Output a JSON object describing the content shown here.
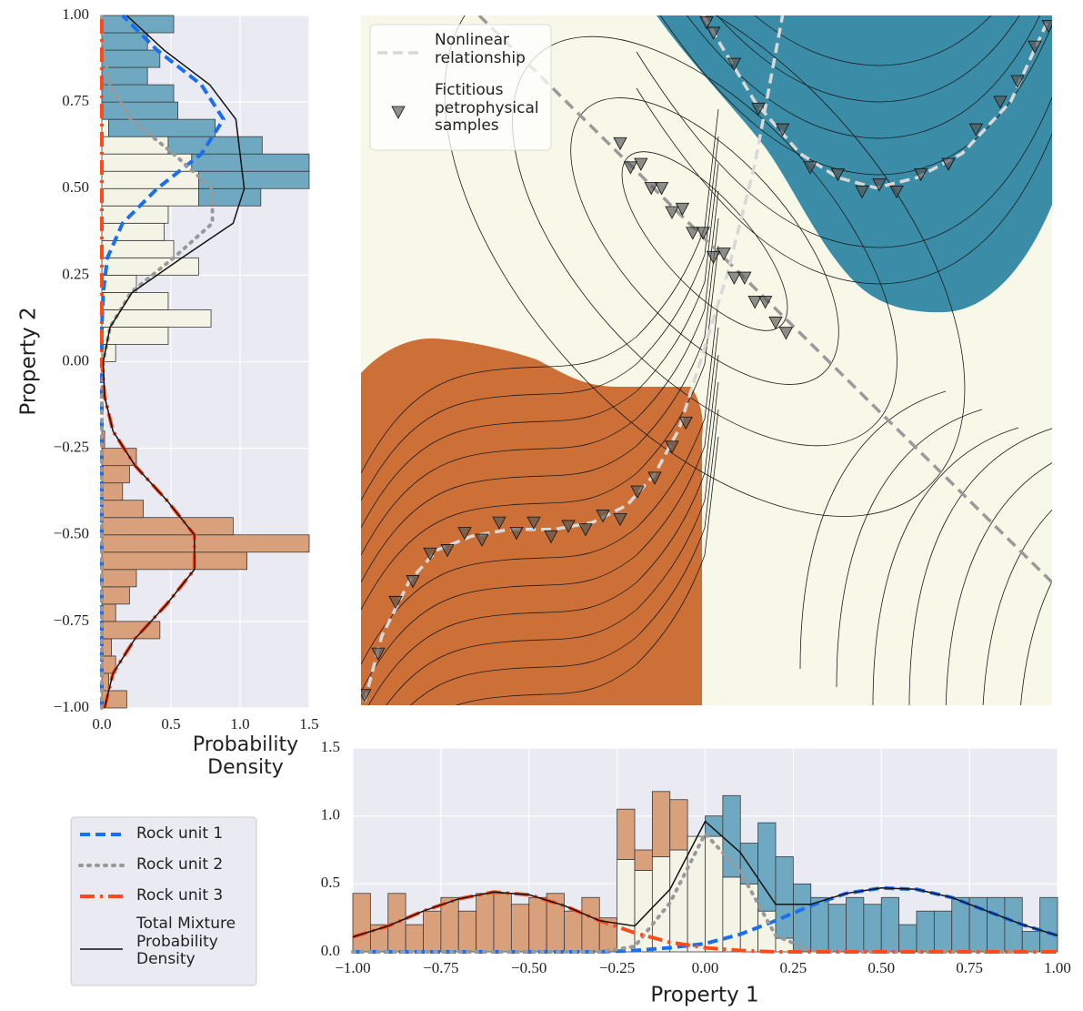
{
  "chart_data": [
    {
      "type": "histogram",
      "orientation": "horizontal",
      "ylabel": "Property 2",
      "xlabel": "Probability Density",
      "xlim": [
        0,
        1.5
      ],
      "xticks": [
        {
          "value": 0,
          "label": "0.0"
        },
        0.5,
        {
          "value": 1,
          "label": "1.0"
        },
        1.5
      ],
      "ylim": [
        -1,
        1
      ],
      "yticks": [
        {
          "value": -1,
          "label": "−1.00"
        },
        {
          "value": -0.75,
          "label": "−0.75"
        },
        {
          "value": -0.5,
          "label": "−0.50"
        },
        {
          "value": -0.25,
          "label": "−0.25"
        },
        {
          "value": 0,
          "label": "0.00"
        },
        0.25,
        {
          "value": 0.5,
          "label": "0.50"
        },
        0.75,
        {
          "value": 1,
          "label": "1.00"
        }
      ],
      "grid": true,
      "bins": [
        -1,
        -0.95,
        -0.9,
        -0.85,
        -0.8,
        -0.75,
        -0.7,
        -0.65,
        -0.6,
        -0.55,
        -0.5,
        -0.45,
        -0.4,
        -0.35,
        -0.3,
        -0.25,
        -0.2,
        -0.15,
        -0.1,
        -0.05,
        0,
        0.05,
        0.1,
        0.15,
        0.2,
        0.25,
        0.3,
        0.35,
        0.4,
        0.45,
        0.5,
        0.55,
        0.6,
        0.65,
        0.7,
        0.75,
        0.8,
        0.85,
        0.9,
        0.95,
        1
      ],
      "series": [
        {
          "color": "#d9a07c",
          "values": [
            0.18,
            0.05,
            0.1,
            0.07,
            0.42,
            0.1,
            0.2,
            0.25,
            1.05,
            1.5,
            0.95,
            0.3,
            0.15,
            0.2,
            0.25,
            0.02,
            0,
            0,
            0,
            0,
            0,
            0,
            0,
            0,
            0,
            0,
            0,
            0,
            0,
            0,
            0,
            0,
            0,
            0,
            0,
            0,
            0,
            0,
            0,
            0
          ]
        },
        {
          "color": "#f4f4e6",
          "values": [
            0,
            0,
            0,
            0,
            0,
            0,
            0,
            0,
            0,
            0,
            0,
            0,
            0,
            0,
            0,
            0,
            0,
            0,
            0,
            0,
            0.1,
            0.48,
            0.79,
            0.48,
            0.25,
            0.7,
            0.52,
            0.45,
            0.48,
            0.7,
            0.7,
            0.65,
            0.48,
            0.05,
            0,
            0,
            0,
            0,
            0,
            0
          ]
        },
        {
          "color": "#6fa9c1",
          "values": [
            0,
            0,
            0,
            0,
            0,
            0,
            0,
            0,
            0,
            0,
            0,
            0,
            0,
            0,
            0,
            0,
            0,
            0,
            0,
            0,
            0,
            0,
            0,
            0,
            0,
            0,
            0,
            0,
            0,
            0.45,
            0.8,
            0.85,
            0.68,
            0.77,
            0.55,
            0.52,
            0.33,
            0.42,
            0.33,
            0.52
          ]
        }
      ],
      "curve_positions": [
        -1,
        -0.9,
        -0.8,
        -0.7,
        -0.6,
        -0.5,
        -0.4,
        -0.3,
        -0.2,
        -0.1,
        0,
        0.1,
        0.2,
        0.3,
        0.4,
        0.5,
        0.6,
        0.7,
        0.8,
        0.9,
        1
      ],
      "lines": [
        {
          "color": "#1a6ff0",
          "style": "dashed",
          "values": [
            0,
            0,
            0,
            0,
            0,
            0,
            0,
            0,
            0,
            0,
            0,
            0,
            0.01,
            0.04,
            0.15,
            0.4,
            0.72,
            0.88,
            0.72,
            0.4,
            0.15
          ]
        },
        {
          "color": "#999999",
          "style": "dotted",
          "values": [
            0,
            0,
            0,
            0,
            0,
            0,
            0,
            0,
            0,
            0,
            0.01,
            0.06,
            0.21,
            0.52,
            0.8,
            0.8,
            0.52,
            0.21,
            0.06,
            0.01,
            0
          ]
        },
        {
          "color": "#ff4a1a",
          "style": "dashdot",
          "values": [
            0.02,
            0.08,
            0.24,
            0.47,
            0.67,
            0.67,
            0.47,
            0.24,
            0.08,
            0.02,
            0,
            0,
            0,
            0,
            0,
            0,
            0,
            0,
            0,
            0,
            0
          ]
        },
        {
          "color": "#111111",
          "style": "solid",
          "values": [
            0.02,
            0.08,
            0.24,
            0.47,
            0.67,
            0.67,
            0.47,
            0.24,
            0.08,
            0.02,
            0.01,
            0.06,
            0.22,
            0.58,
            0.95,
            1.03,
            1.0,
            0.97,
            0.78,
            0.45,
            0.18
          ]
        }
      ]
    },
    {
      "type": "scatter",
      "xlim": [
        -1,
        1
      ],
      "ylim": [
        -1,
        1
      ],
      "legend": "upper left",
      "series": [
        {
          "name": "Nonlinear relationship",
          "color": "#d8d8d8",
          "style": "dashed",
          "x": [
            -0.99,
            -0.94,
            -0.86,
            -0.78,
            -0.68,
            -0.57,
            -0.44,
            -0.33,
            -0.23,
            -0.15,
            -0.08,
            -0.02,
            0.06,
            0.14,
            0.22,
            null,
            -0.01,
            0.14,
            0.27,
            0.38,
            0.49,
            0.61,
            0.74,
            0.88,
            0.99
          ],
          "y": [
            -0.99,
            -0.8,
            -0.64,
            -0.55,
            -0.51,
            -0.49,
            -0.49,
            -0.47,
            -0.42,
            -0.33,
            -0.2,
            -0.01,
            0.25,
            0.57,
            1.0,
            null,
            1.0,
            0.75,
            0.6,
            0.53,
            0.5,
            0.53,
            0.6,
            0.75,
            0.99
          ]
        },
        {
          "name": "Fictitious petrophysical samples",
          "color": "#555555",
          "marker": "v",
          "x": [
            -0.25,
            -0.22,
            -0.19,
            -0.16,
            -0.13,
            -0.1,
            -0.07,
            -0.04,
            -0.01,
            0.02,
            0.05,
            0.08,
            0.11,
            0.14,
            0.17,
            0.2,
            0.23,
            0,
            0.02,
            0.08,
            0.15,
            0.22,
            0.3,
            0.38,
            0.45,
            0.5,
            0.55,
            0.62,
            0.7,
            0.78,
            0.85,
            0.9,
            0.95,
            0.99,
            -0.99,
            -0.95,
            -0.9,
            -0.85,
            -0.8,
            -0.75,
            -0.7,
            -0.65,
            -0.6,
            -0.55,
            -0.5,
            -0.45,
            -0.4,
            -0.35,
            -0.3,
            -0.25,
            -0.2,
            -0.15,
            -0.1,
            -0.06
          ],
          "y": [
            0.63,
            0.56,
            0.57,
            0.5,
            0.5,
            0.43,
            0.44,
            0.37,
            0.37,
            0.3,
            0.31,
            0.24,
            0.24,
            0.17,
            0.17,
            0.11,
            0.08,
            0.98,
            0.95,
            0.86,
            0.73,
            0.67,
            0.56,
            0.54,
            0.49,
            0.51,
            0.49,
            0.54,
            0.57,
            0.67,
            0.75,
            0.81,
            0.91,
            0.97,
            -0.97,
            -0.85,
            -0.7,
            -0.64,
            -0.56,
            -0.55,
            -0.5,
            -0.52,
            -0.47,
            -0.5,
            -0.47,
            -0.51,
            -0.48,
            -0.49,
            -0.45,
            -0.46,
            -0.38,
            -0.34,
            -0.25,
            -0.18
          ]
        }
      ]
    },
    {
      "type": "histogram",
      "orientation": "vertical",
      "xlabel": "Property 1",
      "xlim": [
        -1,
        1
      ],
      "xticks": [
        {
          "value": -1,
          "label": "−1.00"
        },
        {
          "value": -0.75,
          "label": "−0.75"
        },
        {
          "value": -0.5,
          "label": "−0.50"
        },
        {
          "value": -0.25,
          "label": "−0.25"
        },
        {
          "value": 0,
          "label": "0.00"
        },
        0.25,
        {
          "value": 0.5,
          "label": "0.50"
        },
        0.75,
        {
          "value": 1,
          "label": "1.00"
        }
      ],
      "ylim": [
        0,
        1.5
      ],
      "yticks": [
        {
          "value": 0,
          "label": "0.0"
        },
        0.5,
        {
          "value": 1,
          "label": "1.0"
        },
        1.5
      ],
      "grid": true,
      "bins": [
        -1,
        -0.95,
        -0.9,
        -0.85,
        -0.8,
        -0.75,
        -0.7,
        -0.65,
        -0.6,
        -0.55,
        -0.5,
        -0.45,
        -0.4,
        -0.35,
        -0.3,
        -0.25,
        -0.2,
        -0.15,
        -0.1,
        -0.05,
        0,
        0.05,
        0.1,
        0.15,
        0.2,
        0.25,
        0.3,
        0.35,
        0.4,
        0.45,
        0.5,
        0.55,
        0.6,
        0.65,
        0.7,
        0.75,
        0.8,
        0.85,
        0.9,
        0.95,
        1
      ],
      "series": [
        {
          "color": "#f4f4e6",
          "values": [
            0,
            0,
            0,
            0,
            0,
            0,
            0,
            0,
            0,
            0,
            0,
            0,
            0,
            0,
            0,
            0.68,
            0.6,
            0.7,
            0.75,
            0.85,
            0.85,
            0.55,
            0.5,
            0.3,
            0.1,
            0,
            0,
            0,
            0,
            0,
            0,
            0,
            0,
            0,
            0,
            0,
            0,
            0,
            0,
            0
          ]
        },
        {
          "color": "#d9a07c",
          "values": [
            0.43,
            0.2,
            0.43,
            0.2,
            0.3,
            0.4,
            0.3,
            0.43,
            0.43,
            0.35,
            0.4,
            0.43,
            0.3,
            0.4,
            0.25,
            0.37,
            0.15,
            0.48,
            0.37,
            0,
            0,
            0,
            0,
            0,
            0,
            0,
            0,
            0,
            0,
            0,
            0,
            0,
            0,
            0,
            0,
            0,
            0,
            0,
            0,
            0
          ]
        },
        {
          "color": "#6fa9c1",
          "values": [
            0,
            0,
            0,
            0,
            0,
            0,
            0,
            0,
            0,
            0,
            0,
            0,
            0,
            0,
            0,
            0,
            0,
            0,
            0,
            0,
            0.15,
            0.6,
            0.3,
            0.65,
            0.6,
            0.5,
            0.4,
            0.35,
            0.4,
            0.35,
            0.4,
            0.2,
            0.3,
            0.3,
            0.4,
            0.4,
            0.4,
            0.4,
            0.15,
            0.4
          ]
        }
      ],
      "curve_positions": [
        -1,
        -0.9,
        -0.8,
        -0.7,
        -0.6,
        -0.5,
        -0.4,
        -0.3,
        -0.2,
        -0.1,
        0,
        0.1,
        0.2,
        0.3,
        0.4,
        0.5,
        0.6,
        0.7,
        0.8,
        0.9,
        1
      ],
      "lines": [
        {
          "name": "Rock unit 1",
          "color": "#1a6ff0",
          "style": "dashed",
          "values": [
            0,
            0,
            0,
            0,
            0,
            0,
            0,
            0,
            0.01,
            0.03,
            0.06,
            0.13,
            0.23,
            0.34,
            0.43,
            0.47,
            0.46,
            0.4,
            0.3,
            0.2,
            0.12
          ]
        },
        {
          "name": "Rock unit 2",
          "color": "#999999",
          "style": "dotted",
          "values": [
            0,
            0,
            0,
            0,
            0,
            0,
            0,
            0,
            0.04,
            0.36,
            0.87,
            0.59,
            0.12,
            0.01,
            0,
            0,
            0,
            0,
            0,
            0,
            0
          ]
        },
        {
          "name": "Rock unit 3",
          "color": "#ff4a1a",
          "style": "dashdot",
          "values": [
            0.11,
            0.19,
            0.3,
            0.39,
            0.44,
            0.42,
            0.34,
            0.23,
            0.14,
            0.07,
            0.03,
            0.01,
            0,
            0,
            0,
            0,
            0,
            0,
            0,
            0,
            0
          ]
        },
        {
          "name": "Total Mixture Probability Density",
          "color": "#111111",
          "style": "solid",
          "values": [
            0.11,
            0.19,
            0.3,
            0.39,
            0.44,
            0.42,
            0.34,
            0.23,
            0.19,
            0.46,
            0.96,
            0.73,
            0.35,
            0.35,
            0.43,
            0.47,
            0.46,
            0.4,
            0.3,
            0.2,
            0.12
          ]
        }
      ]
    }
  ]
}
